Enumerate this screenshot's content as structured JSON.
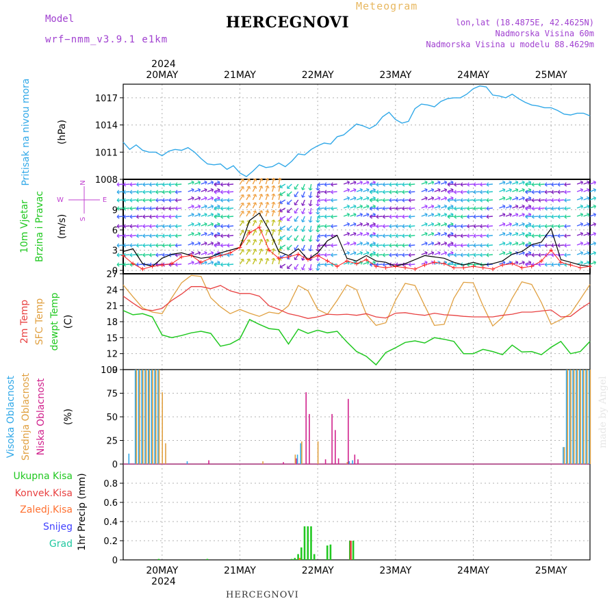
{
  "header": {
    "station": "HERCEGNOVI",
    "model_label": "Model",
    "model_name": "wrf−nmm_v3.9.1 e1km",
    "meteogram_label": "Meteogram",
    "coords": "lon,lat (18.4875E, 42.4625N)",
    "elevation": "Nadmorska Visina 60m",
    "elevation_model": "Nadmorska Visina u modelu 88.4629m",
    "footer_station": "HERCEGNOVI",
    "credit": "made by Angel"
  },
  "colors": {
    "pressure": "#30a8e8",
    "wind_speed": "#000000",
    "wind_gust": "#ff2020",
    "t2m": "#e84040",
    "sfc_temp": "#e0a040",
    "dewpt": "#20c820",
    "cloud_high": "#30a8e8",
    "cloud_mid": "#e0a040",
    "cloud_low": "#d0208c",
    "precip_total": "#20c820",
    "precip_conv": "#e84040",
    "precip_frozen": "#ff7030",
    "snow": "#4040ff",
    "grad": "#20c8a0",
    "grid": "#b0b0b0"
  },
  "time_axis": {
    "year_label": "2024",
    "day_labels": [
      "20MAY",
      "21MAY",
      "22MAY",
      "23MAY",
      "24MAY",
      "25MAY"
    ],
    "start_hour": -12,
    "end_hour": 132
  },
  "chart_data": [
    {
      "type": "line",
      "ylabel": "Pritisak na nivou mora",
      "unit": "(hPa)",
      "ylim": [
        1008,
        1018.5
      ],
      "yticks": [
        1008,
        1011,
        1014,
        1017
      ],
      "x": [
        -12,
        -10,
        -8,
        -6,
        -4,
        -2,
        0,
        2,
        4,
        6,
        8,
        10,
        12,
        14,
        16,
        18,
        20,
        22,
        24,
        26,
        28,
        30,
        32,
        34,
        36,
        38,
        40,
        42,
        44,
        46,
        48,
        50,
        52,
        54,
        56,
        58,
        60,
        62,
        64,
        66,
        68,
        70,
        72,
        74,
        76,
        78,
        80,
        82,
        84,
        86,
        88,
        90,
        92,
        94,
        96,
        98,
        100,
        102,
        104,
        106,
        108,
        110,
        112,
        114,
        116,
        118,
        120,
        122,
        124,
        126,
        128,
        130,
        132
      ],
      "series": [
        {
          "name": "pressure",
          "values": [
            1012.1,
            1011.3,
            1011.8,
            1011.2,
            1011.0,
            1011.0,
            1010.6,
            1011.1,
            1011.3,
            1011.2,
            1011.5,
            1011.0,
            1010.3,
            1009.7,
            1009.6,
            1009.7,
            1009.1,
            1009.5,
            1008.7,
            1008.3,
            1008.9,
            1009.6,
            1009.3,
            1009.4,
            1009.8,
            1009.4,
            1010.0,
            1010.8,
            1010.7,
            1011.3,
            1011.7,
            1012.0,
            1011.9,
            1012.7,
            1012.9,
            1013.5,
            1014.1,
            1013.9,
            1013.6,
            1014.0,
            1014.9,
            1015.4,
            1014.6,
            1014.2,
            1014.4,
            1015.8,
            1016.3,
            1016.2,
            1016.0,
            1016.6,
            1016.9,
            1017.0,
            1017.0,
            1017.4,
            1018.0,
            1018.3,
            1018.2,
            1017.3,
            1017.2,
            1017.0,
            1017.4,
            1016.9,
            1016.5,
            1016.2,
            1016.1,
            1015.9,
            1015.9,
            1015.6,
            1015.2,
            1015.1,
            1015.3,
            1015.3,
            1015.0
          ]
        }
      ]
    },
    {
      "type": "line",
      "ylabel": "10m Vjetar Brzina i Pravac",
      "unit": "(m/s)",
      "direction_legend": {
        "N": "N",
        "E": "E",
        "W": "W",
        "S": "S"
      },
      "ylim": [
        -0.5,
        13.5
      ],
      "yticks": [
        0,
        3,
        6,
        9
      ],
      "x": [
        -12,
        -9,
        -6,
        -3,
        0,
        3,
        6,
        9,
        12,
        15,
        18,
        21,
        24,
        27,
        30,
        33,
        36,
        39,
        42,
        45,
        48,
        51,
        54,
        57,
        60,
        63,
        66,
        69,
        72,
        75,
        78,
        81,
        84,
        87,
        90,
        93,
        96,
        99,
        102,
        105,
        108,
        111,
        114,
        117,
        120,
        123,
        126,
        129,
        132
      ],
      "series": [
        {
          "name": "wind_speed",
          "values": [
            2.8,
            3.2,
            1.0,
            0.6,
            1.8,
            2.4,
            2.6,
            2.2,
            1.8,
            2.0,
            2.6,
            3.0,
            3.4,
            7.4,
            8.5,
            6.0,
            2.8,
            2.2,
            3.2,
            1.6,
            2.6,
            4.4,
            5.2,
            1.8,
            1.4,
            2.2,
            1.4,
            1.2,
            0.6,
            1.0,
            1.6,
            2.2,
            2.0,
            1.8,
            1.2,
            0.8,
            1.2,
            0.8,
            1.0,
            1.4,
            2.4,
            2.8,
            3.8,
            4.2,
            6.2,
            1.6,
            1.2,
            0.8,
            0.6
          ]
        },
        {
          "name": "wind_gust",
          "values": [
            2.2,
            1.0,
            0.2,
            0.6,
            0.8,
            1.0,
            2.0,
            2.2,
            1.2,
            1.8,
            2.2,
            2.6,
            3.4,
            5.6,
            6.4,
            3.0,
            1.8,
            2.0,
            2.4,
            1.6,
            2.2,
            1.4,
            0.6,
            1.4,
            1.0,
            1.6,
            0.6,
            0.4,
            0.6,
            0.4,
            0.2,
            0.8,
            1.2,
            1.0,
            0.4,
            0.4,
            0.6,
            0.4,
            0.2,
            0.8,
            1.0,
            0.4,
            0.6,
            1.4,
            3.0,
            1.2,
            0.8,
            0.4,
            0.6
          ]
        }
      ]
    },
    {
      "type": "line",
      "ylabel": "2m Temp / SFC Temp / dewpt Temp",
      "unit": "(C)",
      "ylim": [
        9,
        27
      ],
      "yticks": [
        9,
        12,
        15,
        18,
        21,
        24,
        27
      ],
      "x": [
        -12,
        -9,
        -6,
        -3,
        0,
        3,
        6,
        9,
        12,
        15,
        18,
        21,
        24,
        27,
        30,
        33,
        36,
        39,
        42,
        45,
        48,
        51,
        54,
        57,
        60,
        63,
        66,
        69,
        72,
        75,
        78,
        81,
        84,
        87,
        90,
        93,
        96,
        99,
        102,
        105,
        108,
        111,
        114,
        117,
        120,
        123,
        126,
        129,
        132
      ],
      "series": [
        {
          "name": "2m Temp",
          "values": [
            22.8,
            21.5,
            20.3,
            20.1,
            20.5,
            22.0,
            23.2,
            24.6,
            24.6,
            24.2,
            24.8,
            23.8,
            23.3,
            23.3,
            22.8,
            21.0,
            20.3,
            19.5,
            19.1,
            18.6,
            18.9,
            19.4,
            19.3,
            19.4,
            19.2,
            19.5,
            18.9,
            18.7,
            19.6,
            19.7,
            19.4,
            19.2,
            19.6,
            19.3,
            19.2,
            19.0,
            18.9,
            18.9,
            18.9,
            19.2,
            19.4,
            19.8,
            19.8,
            20.0,
            20.2,
            18.9,
            19.0,
            20.4,
            21.6
          ]
        },
        {
          "name": "SFC Temp",
          "values": [
            24.9,
            22.7,
            20.6,
            19.8,
            19.5,
            22.5,
            25.3,
            26.7,
            26.5,
            22.5,
            20.8,
            19.5,
            20.3,
            19.6,
            19.0,
            19.8,
            19.5,
            21.0,
            24.8,
            23.8,
            20.3,
            19.4,
            22.0,
            24.9,
            24.0,
            19.4,
            17.3,
            17.8,
            22.0,
            25.2,
            24.8,
            21.0,
            17.3,
            17.5,
            22.4,
            25.4,
            25.3,
            21.0,
            17.2,
            18.8,
            22.4,
            25.5,
            25.0,
            21.6,
            17.5,
            18.4,
            19.5,
            22.2,
            25.0
          ]
        },
        {
          "name": "dewpt Temp",
          "values": [
            20.1,
            19.3,
            19.5,
            18.9,
            15.5,
            15.0,
            15.4,
            15.9,
            16.2,
            15.8,
            13.4,
            13.8,
            14.8,
            18.4,
            17.5,
            16.7,
            16.5,
            13.8,
            16.6,
            15.8,
            16.4,
            15.9,
            16.2,
            14.2,
            12.4,
            11.5,
            9.9,
            12.2,
            13.1,
            14.1,
            14.4,
            14.0,
            15.0,
            14.7,
            14.3,
            12.0,
            12.0,
            12.8,
            12.4,
            11.8,
            13.6,
            12.3,
            12.4,
            11.8,
            13.2,
            14.3,
            12.0,
            12.4,
            14.3
          ]
        }
      ]
    },
    {
      "type": "bar",
      "ylabel": "Visoka Oblacnost / Srednja Oblacnost / Niska Oblacnost",
      "unit": "(%)",
      "ylim": [
        0,
        100
      ],
      "yticks": [
        0,
        25,
        50,
        75,
        100
      ],
      "x": [
        -10,
        -8,
        -7,
        -6,
        -5,
        -4,
        -3,
        -2,
        -1,
        0,
        1,
        8,
        14,
        31,
        37,
        41,
        42,
        43,
        44,
        45,
        46,
        47,
        48,
        49,
        50,
        52,
        53,
        54,
        57,
        58,
        59,
        60,
        124,
        125,
        126,
        127,
        128,
        129,
        130,
        131,
        132
      ],
      "series": [
        {
          "name": "Visoka Oblacnost",
          "values": [
            11,
            100,
            100,
            100,
            100,
            100,
            100,
            100,
            100,
            0,
            0,
            3,
            0,
            0,
            0,
            0,
            10,
            22,
            0,
            0,
            0,
            0,
            0,
            0,
            0,
            0,
            0,
            0,
            0,
            3,
            4,
            0,
            18,
            100,
            100,
            100,
            100,
            100,
            100,
            100,
            100
          ]
        },
        {
          "name": "Srednja Oblacnost",
          "values": [
            0,
            100,
            100,
            100,
            100,
            100,
            100,
            100,
            100,
            76,
            22,
            0,
            0,
            3,
            0,
            10,
            0,
            24,
            0,
            0,
            0,
            0,
            24,
            0,
            0,
            0,
            0,
            0,
            2,
            0,
            0,
            0,
            18,
            100,
            100,
            100,
            100,
            100,
            100,
            100,
            100
          ]
        },
        {
          "name": "Niska Oblacnost",
          "values": [
            0,
            0,
            0,
            0,
            0,
            0,
            0,
            0,
            0,
            0,
            0,
            0,
            4,
            0,
            2,
            6,
            0,
            0,
            76,
            53,
            0,
            0,
            0,
            0,
            5,
            53,
            36,
            6,
            69,
            0,
            10,
            5,
            0,
            0,
            0,
            0,
            0,
            0,
            0,
            0,
            0
          ]
        }
      ]
    },
    {
      "type": "bar",
      "ylabel": "1hr Precip",
      "unit": "(mm)",
      "ylim": [
        0,
        1.0
      ],
      "yticks": [
        0,
        0.2,
        0.4,
        0.6,
        0.8
      ],
      "x": [
        -1,
        14,
        40,
        41,
        42,
        43,
        44,
        45,
        46,
        47,
        51,
        52,
        58,
        59
      ],
      "series": [
        {
          "name": "Ukupna Kisa",
          "values": [
            0.01,
            0.01,
            0.01,
            0.02,
            0.06,
            0.13,
            0.35,
            0.35,
            0.35,
            0.06,
            0.15,
            0.16,
            0.2,
            0.2
          ]
        },
        {
          "name": "Konvek.Kisa",
          "values": [
            0,
            0,
            0,
            0,
            0,
            0,
            0,
            0,
            0,
            0,
            0,
            0,
            0.2,
            0
          ]
        },
        {
          "name": "Zaledj.Kisa",
          "values": [
            0,
            0,
            0,
            0,
            0.02,
            0,
            0,
            0,
            0,
            0,
            0,
            0,
            0,
            0
          ]
        },
        {
          "name": "Snijeg",
          "values": [
            0,
            0,
            0,
            0,
            0,
            0,
            0,
            0,
            0,
            0,
            0,
            0,
            0,
            0
          ]
        },
        {
          "name": "Grad",
          "values": [
            0,
            0,
            0,
            0,
            0,
            0,
            0,
            0,
            0,
            0,
            0,
            0,
            0,
            0
          ]
        }
      ]
    }
  ]
}
